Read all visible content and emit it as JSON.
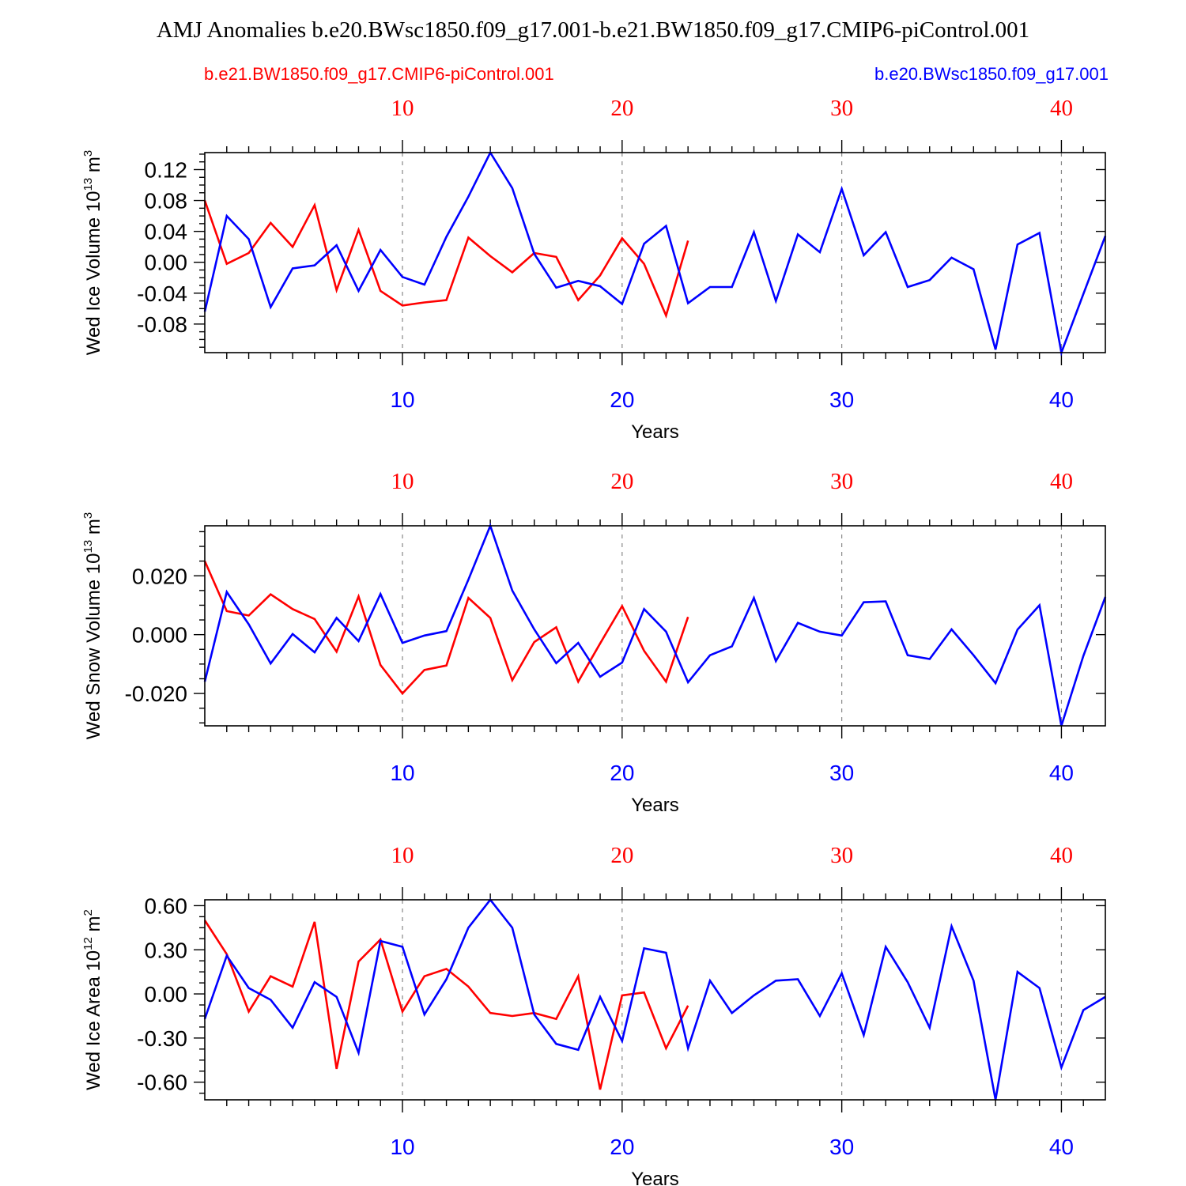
{
  "title": "AMJ Anomalies b.e20.BWsc1850.f09_g17.001-b.e21.BW1850.f09_g17.CMIP6-piControl.001",
  "legend": {
    "left": "b.e21.BW1850.f09_g17.CMIP6-piControl.001",
    "right": "b.e20.BWsc1850.f09_g17.001"
  },
  "colors": {
    "red": "#ff0000",
    "blue": "#0000ff",
    "frame": "#000000",
    "grid": "#888888"
  },
  "chart_data": [
    {
      "type": "line",
      "ylabel_main": "Wed Ice Volume 10",
      "ylabel_exp": "13",
      "ylabel_unit": " m",
      "ylabel_unit_exp": "3",
      "xlabel": "Years",
      "xlim": [
        1,
        42
      ],
      "ylim": [
        -0.117,
        0.142
      ],
      "yticks": [
        0.12,
        0.08,
        0.04,
        0.0,
        -0.04,
        -0.08
      ],
      "ytick_labels": [
        "0.12",
        "0.08",
        "0.04",
        "0.00",
        "-0.04",
        "-0.08"
      ],
      "xticks": [
        10,
        20,
        30,
        40
      ],
      "xtick_labels": [
        "10",
        "20",
        "30",
        "40"
      ],
      "series": [
        {
          "name": "b.e21.BW1850.f09_g17.CMIP6-piControl.001",
          "color": "red",
          "x": [
            1,
            2,
            3,
            4,
            5,
            6,
            7,
            8,
            9,
            10,
            11,
            12,
            13,
            14,
            15,
            16,
            17,
            18,
            19,
            20,
            21,
            22,
            23
          ],
          "values": [
            0.08,
            -0.002,
            0.012,
            0.051,
            0.02,
            0.074,
            -0.036,
            0.042,
            -0.037,
            -0.056,
            -0.052,
            -0.049,
            0.032,
            0.008,
            -0.013,
            0.012,
            0.007,
            -0.049,
            -0.017,
            0.031,
            -0.002,
            -0.069,
            0.028
          ]
        },
        {
          "name": "b.e20.BWsc1850.f09_g17.001",
          "color": "blue",
          "x": [
            1,
            2,
            3,
            4,
            5,
            6,
            7,
            8,
            9,
            10,
            11,
            12,
            13,
            14,
            15,
            16,
            17,
            18,
            19,
            20,
            21,
            22,
            23,
            24,
            25,
            26,
            27,
            28,
            29,
            30,
            31,
            32,
            33,
            34,
            35,
            36,
            37,
            38,
            39,
            40,
            41,
            42
          ],
          "values": [
            -0.064,
            0.06,
            0.03,
            -0.058,
            -0.008,
            -0.004,
            0.022,
            -0.037,
            0.016,
            -0.019,
            -0.029,
            0.033,
            0.085,
            0.142,
            0.096,
            0.011,
            -0.033,
            -0.024,
            -0.031,
            -0.054,
            0.024,
            0.047,
            -0.053,
            -0.032,
            -0.032,
            0.039,
            -0.05,
            0.036,
            0.013,
            0.095,
            0.009,
            0.039,
            -0.032,
            -0.023,
            0.006,
            -0.009,
            -0.113,
            0.023,
            0.038,
            -0.117,
            -0.041,
            0.034
          ]
        }
      ]
    },
    {
      "type": "line",
      "ylabel_main": "Wed Snow Volume 10",
      "ylabel_exp": "13",
      "ylabel_unit": " m",
      "ylabel_unit_exp": "3",
      "xlabel": "Years",
      "xlim": [
        1,
        42
      ],
      "ylim": [
        -0.031,
        0.037
      ],
      "yticks": [
        0.02,
        0.0,
        -0.02
      ],
      "ytick_labels": [
        "0.020",
        "0.000",
        "-0.020"
      ],
      "xticks": [
        10,
        20,
        30,
        40
      ],
      "xtick_labels": [
        "10",
        "20",
        "30",
        "40"
      ],
      "series": [
        {
          "name": "b.e21.BW1850.f09_g17.CMIP6-piControl.001",
          "color": "red",
          "x": [
            1,
            2,
            3,
            4,
            5,
            6,
            7,
            8,
            9,
            10,
            11,
            12,
            13,
            14,
            15,
            16,
            17,
            18,
            19,
            20,
            21,
            22,
            23
          ],
          "values": [
            0.025,
            0.008,
            0.0065,
            0.0137,
            0.0087,
            0.0053,
            -0.0058,
            0.013,
            -0.0103,
            -0.02,
            -0.012,
            -0.0105,
            0.0125,
            0.0057,
            -0.0155,
            -0.0025,
            0.0025,
            -0.016,
            -0.003,
            0.0097,
            -0.0055,
            -0.016,
            0.006
          ]
        },
        {
          "name": "b.e20.BWsc1850.f09_g17.001",
          "color": "blue",
          "x": [
            1,
            2,
            3,
            4,
            5,
            6,
            7,
            8,
            9,
            10,
            11,
            12,
            13,
            14,
            15,
            16,
            17,
            18,
            19,
            20,
            21,
            22,
            23,
            24,
            25,
            26,
            27,
            28,
            29,
            30,
            31,
            32,
            33,
            34,
            35,
            36,
            37,
            38,
            39,
            40,
            41,
            42
          ],
          "values": [
            -0.016,
            0.0145,
            0.0035,
            -0.0098,
            0.0002,
            -0.006,
            0.0057,
            -0.0022,
            0.0138,
            -0.0028,
            -0.0003,
            0.0012,
            0.0187,
            0.037,
            0.015,
            0.0018,
            -0.0097,
            -0.0028,
            -0.0143,
            -0.0095,
            0.0087,
            0.001,
            -0.0162,
            -0.007,
            -0.004,
            0.0125,
            -0.009,
            0.004,
            0.001,
            -0.0003,
            0.011,
            0.0113,
            -0.007,
            -0.0083,
            0.0018,
            -0.007,
            -0.0165,
            0.0017,
            0.01,
            -0.031,
            -0.0072,
            0.0128
          ]
        }
      ]
    },
    {
      "type": "line",
      "ylabel_main": "Wed Ice Area 10",
      "ylabel_exp": "12",
      "ylabel_unit": " m",
      "ylabel_unit_exp": "2",
      "xlabel": "Years",
      "xlim": [
        1,
        42
      ],
      "ylim": [
        -0.72,
        0.64
      ],
      "yticks": [
        0.6,
        0.3,
        0.0,
        -0.3,
        -0.6
      ],
      "ytick_labels": [
        "0.60",
        "0.30",
        "0.00",
        "-0.30",
        "-0.60"
      ],
      "xticks": [
        10,
        20,
        30,
        40
      ],
      "xtick_labels": [
        "10",
        "20",
        "30",
        "40"
      ],
      "series": [
        {
          "name": "b.e21.BW1850.f09_g17.CMIP6-piControl.001",
          "color": "red",
          "x": [
            1,
            2,
            3,
            4,
            5,
            6,
            7,
            8,
            9,
            10,
            11,
            12,
            13,
            14,
            15,
            16,
            17,
            18,
            19,
            20,
            21,
            22,
            23
          ],
          "values": [
            0.5,
            0.27,
            -0.12,
            0.12,
            0.05,
            0.49,
            -0.51,
            0.22,
            0.37,
            -0.12,
            0.12,
            0.17,
            0.05,
            -0.13,
            -0.15,
            -0.13,
            -0.17,
            0.12,
            -0.65,
            -0.01,
            0.01,
            -0.37,
            -0.08
          ]
        },
        {
          "name": "b.e20.BWsc1850.f09_g17.001",
          "color": "blue",
          "x": [
            1,
            2,
            3,
            4,
            5,
            6,
            7,
            8,
            9,
            10,
            11,
            12,
            13,
            14,
            15,
            16,
            17,
            18,
            19,
            20,
            21,
            22,
            23,
            24,
            25,
            26,
            27,
            28,
            29,
            30,
            31,
            32,
            33,
            34,
            35,
            36,
            37,
            38,
            39,
            40,
            41,
            42
          ],
          "values": [
            -0.17,
            0.26,
            0.04,
            -0.04,
            -0.23,
            0.08,
            -0.02,
            -0.4,
            0.36,
            0.32,
            -0.14,
            0.1,
            0.45,
            0.64,
            0.45,
            -0.14,
            -0.34,
            -0.38,
            -0.02,
            -0.32,
            0.31,
            0.28,
            -0.37,
            0.09,
            -0.13,
            -0.01,
            0.09,
            0.1,
            -0.15,
            0.14,
            -0.28,
            0.32,
            0.08,
            -0.23,
            0.46,
            0.09,
            -0.72,
            0.15,
            0.04,
            -0.5,
            -0.11,
            -0.02
          ]
        }
      ]
    }
  ]
}
